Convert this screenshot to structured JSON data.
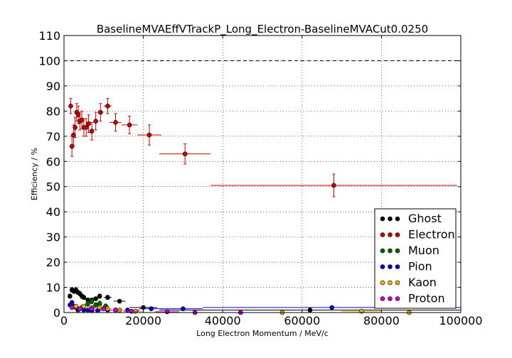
{
  "chart_data": {
    "type": "scatter",
    "title": "BaselineMVAEffVTrackP_Long_Electron-BaselineMVACut0.0250",
    "xlabel": "Long Electron Momentum / MeV/c",
    "ylabel": "Efficiency / %",
    "xlim": [
      0,
      100000
    ],
    "ylim": [
      0,
      110
    ],
    "xticks": [
      "0",
      "20000",
      "40000",
      "60000",
      "80000",
      "100000"
    ],
    "yticks": [
      "0",
      "10",
      "20",
      "30",
      "40",
      "50",
      "60",
      "70",
      "80",
      "90",
      "100",
      "110"
    ],
    "grid": true,
    "reference_line": 100,
    "legend_position": "lower-right",
    "series": [
      {
        "name": "Ghost",
        "color": "#000000",
        "points": [
          {
            "x": 1500,
            "xerr": 500,
            "y": 6.5,
            "yerr": 0.8
          },
          {
            "x": 2000,
            "xerr": 250,
            "y": 9.0,
            "yerr": 0.9
          },
          {
            "x": 2500,
            "xerr": 250,
            "y": 8.5,
            "yerr": 0.9
          },
          {
            "x": 3000,
            "xerr": 250,
            "y": 9.0,
            "yerr": 0.9
          },
          {
            "x": 3500,
            "xerr": 250,
            "y": 8.0,
            "yerr": 0.8
          },
          {
            "x": 4000,
            "xerr": 250,
            "y": 7.5,
            "yerr": 0.8
          },
          {
            "x": 4500,
            "xerr": 300,
            "y": 6.5,
            "yerr": 0.8
          },
          {
            "x": 5000,
            "xerr": 400,
            "y": 6.0,
            "yerr": 0.8
          },
          {
            "x": 6000,
            "xerr": 500,
            "y": 5.0,
            "yerr": 0.7
          },
          {
            "x": 7000,
            "xerr": 500,
            "y": 5.0,
            "yerr": 0.7
          },
          {
            "x": 8000,
            "xerr": 500,
            "y": 5.5,
            "yerr": 0.7
          },
          {
            "x": 9000,
            "xerr": 600,
            "y": 6.5,
            "yerr": 0.8
          },
          {
            "x": 11000,
            "xerr": 1000,
            "y": 6.0,
            "yerr": 0.8
          },
          {
            "x": 14000,
            "xerr": 1500,
            "y": 4.5,
            "yerr": 0.7
          },
          {
            "x": 20000,
            "xerr": 3500,
            "y": 2.0,
            "yerr": 0.5
          },
          {
            "x": 62000,
            "xerr": 38000,
            "y": 1.0,
            "yerr": 0.3
          }
        ]
      },
      {
        "name": "Electron",
        "color": "#cc0000",
        "points": [
          {
            "x": 1700,
            "xerr": 300,
            "y": 82,
            "yerr": 3
          },
          {
            "x": 2000,
            "xerr": 200,
            "y": 66,
            "yerr": 4
          },
          {
            "x": 2400,
            "xerr": 200,
            "y": 70.5,
            "yerr": 4
          },
          {
            "x": 2800,
            "xerr": 200,
            "y": 73.5,
            "yerr": 4
          },
          {
            "x": 3200,
            "xerr": 200,
            "y": 79.5,
            "yerr": 3.5
          },
          {
            "x": 3600,
            "xerr": 200,
            "y": 78.5,
            "yerr": 3.5
          },
          {
            "x": 4000,
            "xerr": 250,
            "y": 76,
            "yerr": 3.5
          },
          {
            "x": 4500,
            "xerr": 250,
            "y": 76.5,
            "yerr": 3.5
          },
          {
            "x": 5000,
            "xerr": 250,
            "y": 73.5,
            "yerr": 3.5
          },
          {
            "x": 5600,
            "xerr": 300,
            "y": 73.5,
            "yerr": 3.5
          },
          {
            "x": 6200,
            "xerr": 300,
            "y": 75,
            "yerr": 3.5
          },
          {
            "x": 7000,
            "xerr": 400,
            "y": 72,
            "yerr": 3.5
          },
          {
            "x": 8000,
            "xerr": 500,
            "y": 76,
            "yerr": 3.5
          },
          {
            "x": 9200,
            "xerr": 700,
            "y": 79.5,
            "yerr": 3.5
          },
          {
            "x": 11000,
            "xerr": 1000,
            "y": 82,
            "yerr": 3
          },
          {
            "x": 13000,
            "xerr": 1500,
            "y": 75.5,
            "yerr": 3.5
          },
          {
            "x": 16500,
            "xerr": 2000,
            "y": 74.5,
            "yerr": 3.5
          },
          {
            "x": 21500,
            "xerr": 3000,
            "y": 70.5,
            "yerr": 4
          },
          {
            "x": 30500,
            "xerr": 6500,
            "y": 63,
            "yerr": 4
          },
          {
            "x": 68000,
            "xerr": 31000,
            "y": 50.5,
            "yerr": 4.5
          }
        ]
      },
      {
        "name": "Muon",
        "color": "#006600",
        "points": [
          {
            "x": 3500,
            "xerr": 500,
            "y": 1.0,
            "yerr": 0.6
          },
          {
            "x": 4500,
            "xerr": 500,
            "y": 2.0,
            "yerr": 0.8
          },
          {
            "x": 6000,
            "xerr": 500,
            "y": 3.5,
            "yerr": 1.0
          },
          {
            "x": 7000,
            "xerr": 500,
            "y": 4.5,
            "yerr": 1.0
          },
          {
            "x": 8000,
            "xerr": 500,
            "y": 3.0,
            "yerr": 0.9
          },
          {
            "x": 9000,
            "xerr": 500,
            "y": 3.5,
            "yerr": 1.0
          },
          {
            "x": 10500,
            "xerr": 700,
            "y": 2.5,
            "yerr": 0.9
          },
          {
            "x": 13000,
            "xerr": 1200,
            "y": 1.0,
            "yerr": 0.6
          }
        ]
      },
      {
        "name": "Pion",
        "color": "#0000cc",
        "points": [
          {
            "x": 1500,
            "xerr": 500,
            "y": 3.0,
            "yerr": 0.5
          },
          {
            "x": 2000,
            "xerr": 250,
            "y": 4.0,
            "yerr": 0.5
          },
          {
            "x": 2500,
            "xerr": 250,
            "y": 2.5,
            "yerr": 0.4
          },
          {
            "x": 3000,
            "xerr": 250,
            "y": 2.0,
            "yerr": 0.4
          },
          {
            "x": 3500,
            "xerr": 250,
            "y": 1.5,
            "yerr": 0.3
          },
          {
            "x": 4000,
            "xerr": 250,
            "y": 1.5,
            "yerr": 0.3
          },
          {
            "x": 5000,
            "xerr": 500,
            "y": 1.0,
            "yerr": 0.3
          },
          {
            "x": 6000,
            "xerr": 500,
            "y": 1.0,
            "yerr": 0.3
          },
          {
            "x": 7000,
            "xerr": 500,
            "y": 0.8,
            "yerr": 0.3
          },
          {
            "x": 8500,
            "xerr": 1000,
            "y": 0.8,
            "yerr": 0.3
          },
          {
            "x": 11000,
            "xerr": 1500,
            "y": 1.0,
            "yerr": 0.3
          },
          {
            "x": 16000,
            "xerr": 3000,
            "y": 1.0,
            "yerr": 0.3
          },
          {
            "x": 22000,
            "xerr": 3000,
            "y": 1.5,
            "yerr": 0.4
          },
          {
            "x": 30000,
            "xerr": 5000,
            "y": 1.5,
            "yerr": 0.4
          },
          {
            "x": 67500,
            "xerr": 32500,
            "y": 2.0,
            "yerr": 0.5
          }
        ]
      },
      {
        "name": "Kaon",
        "color": "#e6b800",
        "points": [
          {
            "x": 3000,
            "xerr": 500,
            "y": 2.5,
            "yerr": 0.6
          },
          {
            "x": 5000,
            "xerr": 800,
            "y": 2.5,
            "yerr": 0.6
          },
          {
            "x": 7000,
            "xerr": 800,
            "y": 2.0,
            "yerr": 0.5
          },
          {
            "x": 9000,
            "xerr": 800,
            "y": 2.0,
            "yerr": 0.5
          },
          {
            "x": 11000,
            "xerr": 1000,
            "y": 1.5,
            "yerr": 0.5
          },
          {
            "x": 14000,
            "xerr": 1500,
            "y": 1.0,
            "yerr": 0.4
          },
          {
            "x": 18000,
            "xerr": 2000,
            "y": 0.5,
            "yerr": 0.3
          },
          {
            "x": 26000,
            "xerr": 3000,
            "y": 0.3,
            "yerr": 0.2
          },
          {
            "x": 55000,
            "xerr": 5000,
            "y": 0.0,
            "yerr": 0.2
          },
          {
            "x": 75000,
            "xerr": 5000,
            "y": 0.5,
            "yerr": 0.3
          },
          {
            "x": 87000,
            "xerr": 13000,
            "y": 0.0,
            "yerr": 0.2
          }
        ]
      },
      {
        "name": "Proton",
        "color": "#cc00cc",
        "points": [
          {
            "x": 2000,
            "xerr": 500,
            "y": 2.0,
            "yerr": 0.5
          },
          {
            "x": 4000,
            "xerr": 800,
            "y": 1.5,
            "yerr": 0.5
          },
          {
            "x": 7000,
            "xerr": 1000,
            "y": 1.5,
            "yerr": 0.5
          },
          {
            "x": 10000,
            "xerr": 1000,
            "y": 1.5,
            "yerr": 0.5
          },
          {
            "x": 13000,
            "xerr": 1500,
            "y": 1.0,
            "yerr": 0.4
          },
          {
            "x": 17000,
            "xerr": 2000,
            "y": 0.5,
            "yerr": 0.3
          },
          {
            "x": 26000,
            "xerr": 3000,
            "y": 0.3,
            "yerr": 0.2
          },
          {
            "x": 33000,
            "xerr": 3000,
            "y": 0.0,
            "yerr": 0.2
          },
          {
            "x": 44500,
            "xerr": 5000,
            "y": 0.0,
            "yerr": 0.2
          }
        ]
      }
    ]
  }
}
